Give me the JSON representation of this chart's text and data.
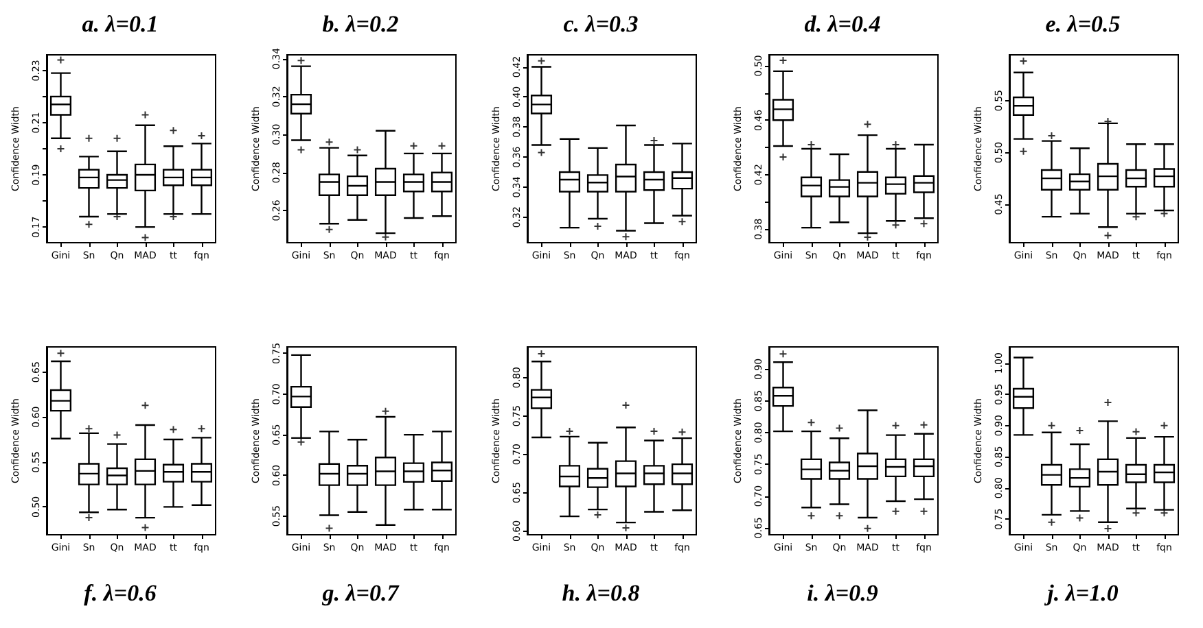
{
  "chart_data": [
    {
      "type": "box",
      "title": "a. λ=0.1",
      "ylabel": "Confidence Width",
      "categories": [
        "Gini",
        "Sn",
        "Qn",
        "MAD",
        "tt",
        "fqn"
      ],
      "marker": "cross",
      "ylim": [
        0.164,
        0.236
      ],
      "yticks": [
        0.17,
        {
          "value": 0.18,
          "label": null
        },
        0.19,
        {
          "value": 0.2,
          "label": null
        },
        0.21,
        {
          "value": 0.22,
          "label": null
        },
        0.23
      ],
      "boxes": [
        {
          "low": 0.204,
          "q1": 0.213,
          "median": 0.217,
          "q3": 0.22,
          "high": 0.229,
          "outliers": [
            0.2,
            0.234
          ]
        },
        {
          "low": 0.174,
          "q1": 0.185,
          "median": 0.189,
          "q3": 0.192,
          "high": 0.197,
          "outliers": [
            0.171,
            0.204
          ]
        },
        {
          "low": 0.175,
          "q1": 0.185,
          "median": 0.188,
          "q3": 0.19,
          "high": 0.199,
          "outliers": [
            0.174,
            0.204
          ]
        },
        {
          "low": 0.17,
          "q1": 0.184,
          "median": 0.19,
          "q3": 0.194,
          "high": 0.209,
          "outliers": [
            0.166,
            0.213
          ]
        },
        {
          "low": 0.175,
          "q1": 0.186,
          "median": 0.189,
          "q3": 0.192,
          "high": 0.201,
          "outliers": [
            0.174,
            0.207
          ]
        },
        {
          "low": 0.175,
          "q1": 0.186,
          "median": 0.189,
          "q3": 0.192,
          "high": 0.202,
          "outliers": [
            0.205
          ]
        }
      ]
    },
    {
      "type": "box",
      "title": "b. λ=0.2",
      "ylabel": "Confidence Width",
      "categories": [
        "Gini",
        "Sn",
        "Qn",
        "MAD",
        "tt",
        "fqn"
      ],
      "marker": "cross",
      "ylim": [
        0.243,
        0.342
      ],
      "yticks": [
        0.26,
        0.28,
        {
          "value": 0.3,
          "label": "0.30"
        },
        0.32,
        0.34
      ],
      "boxes": [
        {
          "low": 0.297,
          "q1": 0.311,
          "median": 0.316,
          "q3": 0.321,
          "high": 0.336,
          "outliers": [
            0.292,
            0.339
          ]
        },
        {
          "low": 0.253,
          "q1": 0.268,
          "median": 0.275,
          "q3": 0.279,
          "high": 0.293,
          "outliers": [
            0.25,
            0.296
          ]
        },
        {
          "low": 0.255,
          "q1": 0.268,
          "median": 0.273,
          "q3": 0.278,
          "high": 0.289,
          "outliers": [
            0.292
          ]
        },
        {
          "low": 0.248,
          "q1": 0.268,
          "median": 0.275,
          "q3": 0.282,
          "high": 0.302,
          "outliers": [
            0.246
          ]
        },
        {
          "low": 0.256,
          "q1": 0.27,
          "median": 0.275,
          "q3": 0.279,
          "high": 0.29,
          "outliers": [
            0.294
          ]
        },
        {
          "low": 0.257,
          "q1": 0.27,
          "median": 0.275,
          "q3": 0.28,
          "high": 0.29,
          "outliers": [
            0.294
          ]
        }
      ]
    },
    {
      "type": "box",
      "title": "c. λ=0.3",
      "ylabel": "Confidence Width",
      "categories": [
        "Gini",
        "Sn",
        "Qn",
        "MAD",
        "tt",
        "fqn"
      ],
      "marker": "cross",
      "ylim": [
        0.303,
        0.428
      ],
      "yticks": [
        0.32,
        0.34,
        0.36,
        0.38,
        {
          "value": 0.4,
          "label": "0.40"
        },
        0.42
      ],
      "boxes": [
        {
          "low": 0.368,
          "q1": 0.389,
          "median": 0.395,
          "q3": 0.401,
          "high": 0.42,
          "outliers": [
            0.363,
            0.424
          ]
        },
        {
          "low": 0.313,
          "q1": 0.337,
          "median": 0.345,
          "q3": 0.35,
          "high": 0.372
        },
        {
          "low": 0.319,
          "q1": 0.337,
          "median": 0.343,
          "q3": 0.348,
          "high": 0.366,
          "outliers": [
            0.314
          ]
        },
        {
          "low": 0.311,
          "q1": 0.337,
          "median": 0.347,
          "q3": 0.355,
          "high": 0.381,
          "outliers": [
            0.307
          ]
        },
        {
          "low": 0.316,
          "q1": 0.338,
          "median": 0.345,
          "q3": 0.35,
          "high": 0.368,
          "outliers": [
            0.371
          ]
        },
        {
          "low": 0.321,
          "q1": 0.339,
          "median": 0.346,
          "q3": 0.35,
          "high": 0.369,
          "outliers": [
            0.317
          ]
        }
      ]
    },
    {
      "type": "box",
      "title": "d. λ=0.4",
      "ylabel": "Confidence Width",
      "categories": [
        "Gini",
        "Sn",
        "Qn",
        "MAD",
        "tt",
        "fqn"
      ],
      "marker": "cross",
      "ylim": [
        0.37,
        0.508
      ],
      "yticks": [
        0.38,
        {
          "value": 0.4,
          "label": null
        },
        0.42,
        {
          "value": 0.44,
          "label": null
        },
        0.46,
        {
          "value": 0.48,
          "label": null
        },
        {
          "value": 0.5,
          "label": "0.50"
        }
      ],
      "boxes": [
        {
          "low": 0.441,
          "q1": 0.46,
          "median": 0.468,
          "q3": 0.475,
          "high": 0.496,
          "outliers": [
            0.433,
            0.504
          ]
        },
        {
          "low": 0.381,
          "q1": 0.404,
          "median": 0.412,
          "q3": 0.418,
          "high": 0.439,
          "outliers": [
            0.442
          ]
        },
        {
          "low": 0.385,
          "q1": 0.404,
          "median": 0.411,
          "q3": 0.416,
          "high": 0.435
        },
        {
          "low": 0.377,
          "q1": 0.404,
          "median": 0.414,
          "q3": 0.422,
          "high": 0.449,
          "outliers": [
            0.374,
            0.457
          ]
        },
        {
          "low": 0.386,
          "q1": 0.406,
          "median": 0.413,
          "q3": 0.418,
          "high": 0.439,
          "outliers": [
            0.383,
            0.442
          ]
        },
        {
          "low": 0.388,
          "q1": 0.407,
          "median": 0.414,
          "q3": 0.419,
          "high": 0.442,
          "outliers": [
            0.384
          ]
        }
      ]
    },
    {
      "type": "box",
      "title": "e. λ=0.5",
      "ylabel": "Confidence Width",
      "categories": [
        "Gini",
        "Sn",
        "Qn",
        "MAD",
        "tt",
        "fqn"
      ],
      "marker": "cross",
      "ylim": [
        0.413,
        0.594
      ],
      "yticks": [
        0.45,
        {
          "value": 0.5,
          "label": "0.50"
        },
        0.55
      ],
      "boxes": [
        {
          "low": 0.513,
          "q1": 0.536,
          "median": 0.545,
          "q3": 0.553,
          "high": 0.577,
          "outliers": [
            0.501,
            0.588
          ]
        },
        {
          "low": 0.438,
          "q1": 0.464,
          "median": 0.475,
          "q3": 0.483,
          "high": 0.511,
          "outliers": [
            0.516
          ]
        },
        {
          "low": 0.441,
          "q1": 0.464,
          "median": 0.472,
          "q3": 0.479,
          "high": 0.504
        },
        {
          "low": 0.428,
          "q1": 0.464,
          "median": 0.477,
          "q3": 0.489,
          "high": 0.528,
          "outliers": [
            0.42,
            0.53
          ]
        },
        {
          "low": 0.441,
          "q1": 0.467,
          "median": 0.475,
          "q3": 0.483,
          "high": 0.508,
          "outliers": [
            0.438
          ]
        },
        {
          "low": 0.444,
          "q1": 0.467,
          "median": 0.477,
          "q3": 0.484,
          "high": 0.508,
          "outliers": [
            0.441
          ]
        }
      ]
    },
    {
      "type": "box",
      "title": "f. λ=0.6",
      "ylabel": "Confidence Width",
      "categories": [
        "Gini",
        "Sn",
        "Qn",
        "MAD",
        "tt",
        "fqn"
      ],
      "marker": "cross",
      "ylim": [
        0.469,
        0.678
      ],
      "yticks": [
        {
          "value": 0.5,
          "label": "0.50"
        },
        0.55,
        {
          "value": 0.6,
          "label": "0.60"
        },
        0.65
      ],
      "boxes": [
        {
          "low": 0.576,
          "q1": 0.607,
          "median": 0.618,
          "q3": 0.63,
          "high": 0.662,
          "outliers": [
            0.671
          ]
        },
        {
          "low": 0.494,
          "q1": 0.525,
          "median": 0.537,
          "q3": 0.548,
          "high": 0.582,
          "outliers": [
            0.488,
            0.587
          ]
        },
        {
          "low": 0.497,
          "q1": 0.525,
          "median": 0.535,
          "q3": 0.543,
          "high": 0.57,
          "outliers": [
            0.58
          ]
        },
        {
          "low": 0.488,
          "q1": 0.525,
          "median": 0.54,
          "q3": 0.553,
          "high": 0.591,
          "outliers": [
            0.477,
            0.613
          ]
        },
        {
          "low": 0.5,
          "q1": 0.528,
          "median": 0.539,
          "q3": 0.547,
          "high": 0.575,
          "outliers": [
            0.586
          ]
        },
        {
          "low": 0.502,
          "q1": 0.528,
          "median": 0.539,
          "q3": 0.548,
          "high": 0.577,
          "outliers": [
            0.587
          ]
        }
      ]
    },
    {
      "type": "box",
      "title": "g. λ=0.7",
      "ylabel": "Confidence Width",
      "categories": [
        "Gini",
        "Sn",
        "Qn",
        "MAD",
        "tt",
        "fqn"
      ],
      "marker": "cross",
      "ylim": [
        0.527,
        0.758
      ],
      "yticks": [
        0.55,
        {
          "value": 0.6,
          "label": "0.60"
        },
        0.65,
        {
          "value": 0.7,
          "label": "0.70"
        },
        0.75
      ],
      "boxes": [
        {
          "low": 0.646,
          "q1": 0.684,
          "median": 0.697,
          "q3": 0.709,
          "high": 0.748,
          "outliers": [
            0.641
          ]
        },
        {
          "low": 0.551,
          "q1": 0.588,
          "median": 0.602,
          "q3": 0.614,
          "high": 0.654,
          "outliers": [
            0.535
          ]
        },
        {
          "low": 0.555,
          "q1": 0.588,
          "median": 0.602,
          "q3": 0.612,
          "high": 0.644
        },
        {
          "low": 0.539,
          "q1": 0.588,
          "median": 0.605,
          "q3": 0.622,
          "high": 0.672,
          "outliers": [
            0.679
          ]
        },
        {
          "low": 0.558,
          "q1": 0.592,
          "median": 0.605,
          "q3": 0.615,
          "high": 0.65
        },
        {
          "low": 0.558,
          "q1": 0.593,
          "median": 0.606,
          "q3": 0.616,
          "high": 0.654
        }
      ]
    },
    {
      "type": "box",
      "title": "h. λ=0.8",
      "ylabel": "Confidence Width",
      "categories": [
        "Gini",
        "Sn",
        "Qn",
        "MAD",
        "tt",
        "fqn"
      ],
      "marker": "cross",
      "ylim": [
        0.595,
        0.84
      ],
      "yticks": [
        {
          "value": 0.6,
          "label": "0.60"
        },
        0.65,
        {
          "value": 0.7,
          "label": "0.70"
        },
        0.75,
        {
          "value": 0.8,
          "label": "0.80"
        }
      ],
      "boxes": [
        {
          "low": 0.722,
          "q1": 0.76,
          "median": 0.774,
          "q3": 0.784,
          "high": 0.821,
          "outliers": [
            0.831
          ]
        },
        {
          "low": 0.619,
          "q1": 0.658,
          "median": 0.671,
          "q3": 0.685,
          "high": 0.723,
          "outliers": [
            0.73
          ]
        },
        {
          "low": 0.628,
          "q1": 0.657,
          "median": 0.669,
          "q3": 0.681,
          "high": 0.715,
          "outliers": [
            0.621
          ]
        },
        {
          "low": 0.611,
          "q1": 0.658,
          "median": 0.675,
          "q3": 0.691,
          "high": 0.735,
          "outliers": [
            0.604,
            0.764
          ]
        },
        {
          "low": 0.625,
          "q1": 0.661,
          "median": 0.675,
          "q3": 0.685,
          "high": 0.718,
          "outliers": [
            0.73
          ]
        },
        {
          "low": 0.627,
          "q1": 0.661,
          "median": 0.675,
          "q3": 0.687,
          "high": 0.721,
          "outliers": [
            0.729
          ]
        }
      ]
    },
    {
      "type": "box",
      "title": "i. λ=0.9",
      "ylabel": "Confidence Width",
      "categories": [
        "Gini",
        "Sn",
        "Qn",
        "MAD",
        "tt",
        "fqn"
      ],
      "marker": "cross",
      "ylim": [
        0.639,
        0.935
      ],
      "yticks": [
        0.65,
        {
          "value": 0.7,
          "label": "0.70"
        },
        0.75,
        {
          "value": 0.8,
          "label": "0.80"
        },
        0.85,
        {
          "value": 0.9,
          "label": "0.90"
        }
      ],
      "boxes": [
        {
          "low": 0.802,
          "q1": 0.842,
          "median": 0.858,
          "q3": 0.871,
          "high": 0.911,
          "outliers": [
            0.924
          ]
        },
        {
          "low": 0.682,
          "q1": 0.727,
          "median": 0.742,
          "q3": 0.758,
          "high": 0.802,
          "outliers": [
            0.669,
            0.816
          ]
        },
        {
          "low": 0.687,
          "q1": 0.727,
          "median": 0.74,
          "q3": 0.753,
          "high": 0.791,
          "outliers": [
            0.669,
            0.807
          ]
        },
        {
          "low": 0.666,
          "q1": 0.727,
          "median": 0.747,
          "q3": 0.767,
          "high": 0.835,
          "outliers": [
            0.649
          ]
        },
        {
          "low": 0.692,
          "q1": 0.731,
          "median": 0.746,
          "q3": 0.758,
          "high": 0.796,
          "outliers": [
            0.676,
            0.811
          ]
        },
        {
          "low": 0.695,
          "q1": 0.731,
          "median": 0.747,
          "q3": 0.758,
          "high": 0.798,
          "outliers": [
            0.676,
            0.812
          ]
        }
      ]
    },
    {
      "type": "box",
      "title": "j. λ=1.0",
      "ylabel": "Confidence Width",
      "categories": [
        "Gini",
        "Sn",
        "Qn",
        "MAD",
        "tt",
        "fqn"
      ],
      "marker": "cross",
      "ylim": [
        0.725,
        1.026
      ],
      "yticks": [
        0.75,
        {
          "value": 0.8,
          "label": "0.80"
        },
        0.85,
        {
          "value": 0.9,
          "label": "0.90"
        },
        0.95,
        {
          "value": 1.0,
          "label": "1.00"
        }
      ],
      "boxes": [
        {
          "low": 0.885,
          "q1": 0.928,
          "median": 0.946,
          "q3": 0.959,
          "high": 1.009
        },
        {
          "low": 0.757,
          "q1": 0.805,
          "median": 0.821,
          "q3": 0.837,
          "high": 0.889,
          "outliers": [
            0.745,
            0.9
          ]
        },
        {
          "low": 0.763,
          "q1": 0.802,
          "median": 0.816,
          "q3": 0.83,
          "high": 0.87,
          "outliers": [
            0.752,
            0.892
          ]
        },
        {
          "low": 0.745,
          "q1": 0.805,
          "median": 0.826,
          "q3": 0.846,
          "high": 0.907,
          "outliers": [
            0.735,
            0.937
          ]
        },
        {
          "low": 0.767,
          "q1": 0.809,
          "median": 0.822,
          "q3": 0.837,
          "high": 0.88,
          "outliers": [
            0.76,
            0.89
          ]
        },
        {
          "low": 0.765,
          "q1": 0.809,
          "median": 0.825,
          "q3": 0.837,
          "high": 0.882,
          "outliers": [
            0.76,
            0.9
          ]
        }
      ]
    }
  ]
}
